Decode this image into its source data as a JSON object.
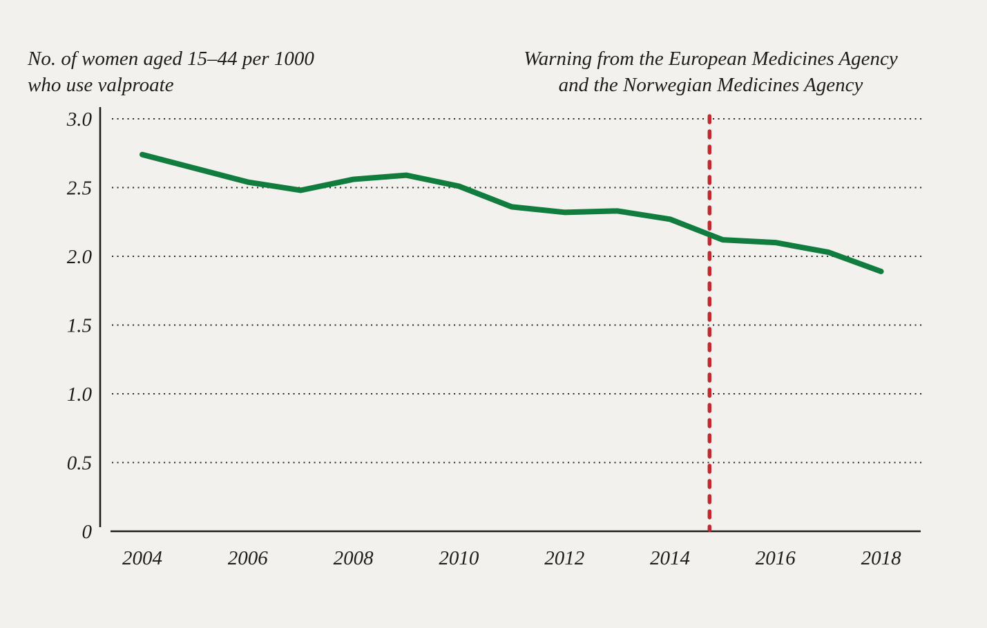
{
  "chart_data": {
    "type": "line",
    "title": "No. of women aged 15–44 per 1000 who use valproate",
    "title_lines": [
      "No. of women aged 15–44 per 1000",
      "who use valproate"
    ],
    "annotation_lines": [
      "Warning from the European Medicines Agency",
      "and the Norwegian Medicines Agency"
    ],
    "xlabel": "",
    "ylabel": "No. of women aged 15–44 per 1000 who use valproate",
    "x": [
      2004,
      2005,
      2006,
      2007,
      2008,
      2009,
      2010,
      2011,
      2012,
      2013,
      2014,
      2015,
      2016,
      2017,
      2018
    ],
    "values": [
      2.74,
      2.64,
      2.54,
      2.48,
      2.56,
      2.59,
      2.51,
      2.36,
      2.32,
      2.33,
      2.27,
      2.12,
      2.1,
      2.03,
      1.89
    ],
    "series_name": "Valproate users per 1000 women aged 15–44",
    "ylim": [
      0,
      3.0
    ],
    "xlim": [
      2004,
      2018
    ],
    "y_ticks": [
      {
        "value": 0,
        "label": "0"
      },
      {
        "value": 0.5,
        "label": "0.5"
      },
      {
        "value": 1.0,
        "label": "1.0"
      },
      {
        "value": 1.5,
        "label": "1.5"
      },
      {
        "value": 2.0,
        "label": "2.0"
      },
      {
        "value": 2.5,
        "label": "2.5"
      },
      {
        "value": 3.0,
        "label": "3.0"
      }
    ],
    "x_ticks": [
      {
        "value": 2004,
        "label": "2004"
      },
      {
        "value": 2006,
        "label": "2006"
      },
      {
        "value": 2008,
        "label": "2008"
      },
      {
        "value": 2010,
        "label": "2010"
      },
      {
        "value": 2012,
        "label": "2012"
      },
      {
        "value": 2014,
        "label": "2014"
      },
      {
        "value": 2016,
        "label": "2016"
      },
      {
        "value": 2018,
        "label": "2018"
      }
    ],
    "warning_line_year": 2014.75,
    "grid": "dotted-horizontal",
    "legend": "none",
    "colors": {
      "line": "#107c3e",
      "warning_line": "#d2232a",
      "axis": "#1d1d1b",
      "grid": "#2b2b29",
      "text": "#1d1d1b",
      "background": "#f2f1ee"
    }
  }
}
